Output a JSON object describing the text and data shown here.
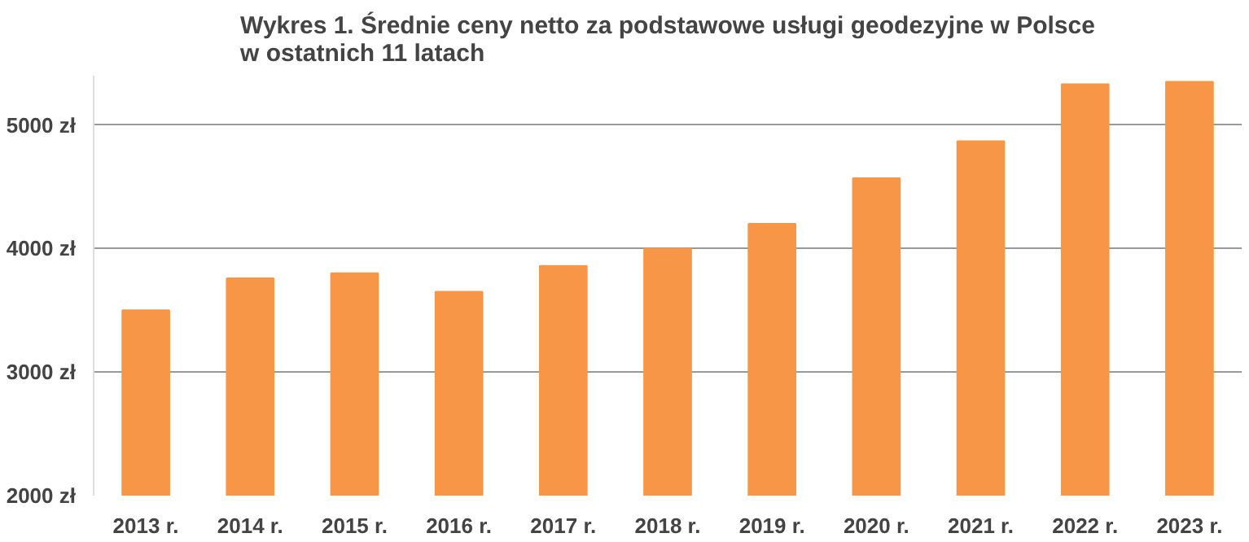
{
  "chart_data": {
    "type": "bar",
    "title": "Wykres 1. Średnie ceny netto za podstawowe usługi geodezyjne w Polsce\nw ostatnich 11 latach",
    "categories": [
      "2013 r.",
      "2014 r.",
      "2015 r.",
      "2016 r.",
      "2017 r.",
      "2018 r.",
      "2019 r.",
      "2020 r.",
      "2021 r.",
      "2022 r.",
      "2023 r."
    ],
    "values": [
      3500,
      3760,
      3800,
      3650,
      3860,
      4000,
      4200,
      4570,
      4870,
      5330,
      5350
    ],
    "color": "#f79646",
    "ylim": [
      2000,
      5400
    ],
    "yticks": [
      {
        "value": 2000,
        "label": "2000 zł"
      },
      {
        "value": 3000,
        "label": "3000 zł"
      },
      {
        "value": 4000,
        "label": "4000 zł"
      },
      {
        "value": 5000,
        "label": "5000 zł"
      }
    ],
    "grid": "y"
  }
}
